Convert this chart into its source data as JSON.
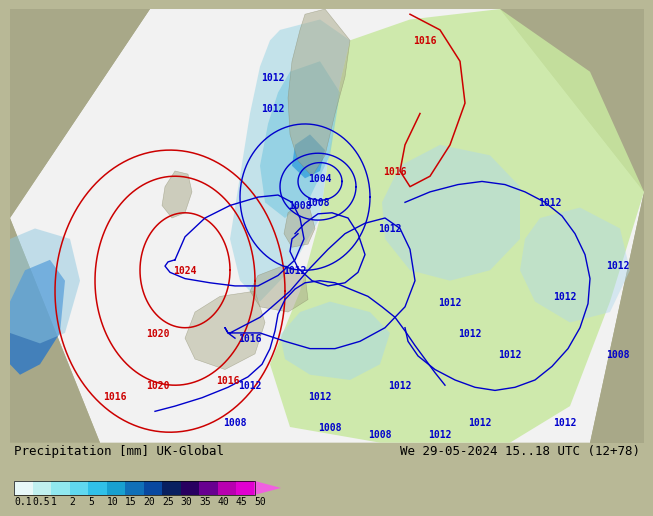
{
  "title_left": "Precipitation [mm] UK-Global",
  "title_right": "We 29-05-2024 15..18 UTC (12+78)",
  "bg_color": "#b8b896",
  "domain_color": "#f0f0f0",
  "sea_color": "#c8c8b0",
  "land_color": "#b8b896",
  "green_precip_color": "#c8e8a0",
  "light_blue_precip": "#a8dce8",
  "blue_precip": "#50b8e0",
  "dark_blue_precip": "#1878c8",
  "title_fontsize": 9,
  "colorbar_label_fontsize": 7,
  "colorbar_colors": [
    "#e8f8f8",
    "#c0f0f0",
    "#90e8f0",
    "#60d8f0",
    "#30c0e8",
    "#18a0d0",
    "#1070b8",
    "#0848a0",
    "#082060",
    "#280060",
    "#680090",
    "#b800b0",
    "#e000d0",
    "#f060e0"
  ],
  "colorbar_labels": [
    "0.1",
    "0.5",
    "1",
    "2",
    "5",
    "10",
    "15",
    "20",
    "25",
    "30",
    "35",
    "40",
    "45",
    "50"
  ]
}
